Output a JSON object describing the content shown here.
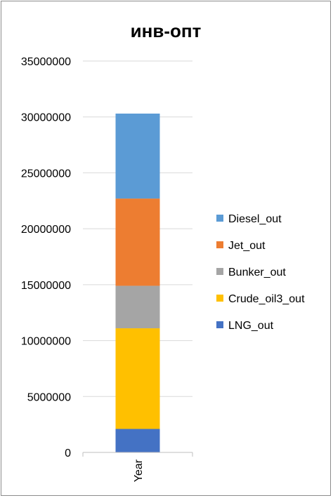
{
  "chart_data": {
    "type": "bar",
    "stacked": true,
    "title": "инв-опт",
    "categories": [
      "Year"
    ],
    "ylim": [
      0,
      35000000
    ],
    "yticks": [
      0,
      5000000,
      10000000,
      15000000,
      20000000,
      25000000,
      30000000,
      35000000
    ],
    "grid": true,
    "legend_position": "right",
    "series": [
      {
        "name": "LNG_out",
        "values": [
          2100000
        ],
        "color": "#4472C4"
      },
      {
        "name": "Crude_oil3_out",
        "values": [
          9000000
        ],
        "color": "#FFC000"
      },
      {
        "name": "Bunker_out",
        "values": [
          3800000
        ],
        "color": "#A5A5A5"
      },
      {
        "name": "Jet_out",
        "values": [
          7800000
        ],
        "color": "#ED7D31"
      },
      {
        "name": "Diesel_out",
        "values": [
          7600000
        ],
        "color": "#5B9BD5"
      }
    ]
  }
}
